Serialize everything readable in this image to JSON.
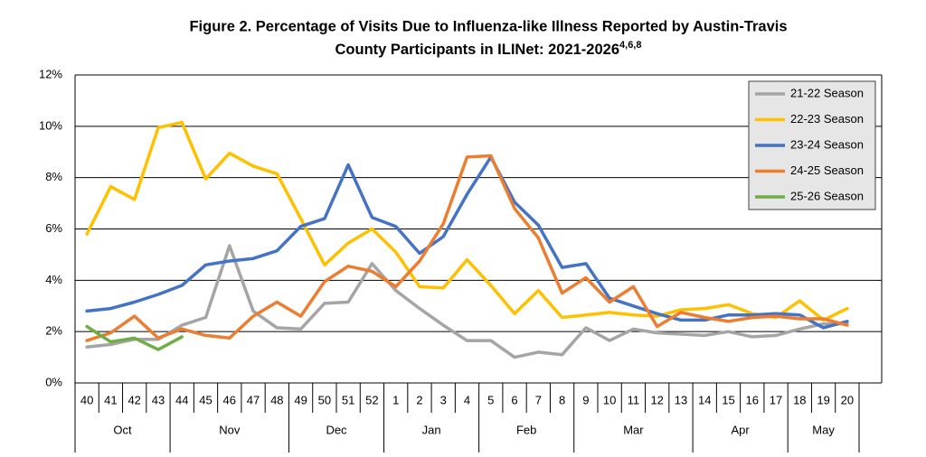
{
  "chart_data": {
    "type": "line",
    "title": "Figure 2. Percentage of Visits Due to Influenza-like Illness Reported by Austin-Travis",
    "title_line2": "County Participants in ILINet: 2021-2026",
    "title_superscript": "4,6,8",
    "categories": [
      "40",
      "41",
      "42",
      "43",
      "44",
      "45",
      "46",
      "47",
      "48",
      "49",
      "50",
      "51",
      "52",
      "1",
      "2",
      "3",
      "4",
      "5",
      "6",
      "7",
      "8",
      "9",
      "10",
      "11",
      "12",
      "13",
      "14",
      "15",
      "16",
      "17",
      "18",
      "19",
      "20"
    ],
    "months": [
      "Oct",
      "Oct",
      "Oct",
      "Oct",
      "Nov",
      "Nov",
      "Nov",
      "Nov",
      "Nov",
      "Dec",
      "Dec",
      "Dec",
      "Dec",
      "Jan",
      "Jan",
      "Jan",
      "Jan",
      "Feb",
      "Feb",
      "Feb",
      "Feb",
      "Mar",
      "Mar",
      "Mar",
      "Mar",
      "Mar",
      "Apr",
      "Apr",
      "Apr",
      "Apr",
      "May",
      "May",
      "May"
    ],
    "ylim": [
      0,
      12
    ],
    "yticks": [
      {
        "value": 0,
        "label": "0%"
      },
      {
        "value": 2,
        "label": "2%"
      },
      {
        "value": 4,
        "label": "4%"
      },
      {
        "value": 6,
        "label": "6%"
      },
      {
        "value": 8,
        "label": "8%"
      },
      {
        "value": 10,
        "label": "10%"
      },
      {
        "value": 12,
        "label": "12%"
      }
    ],
    "grid": true,
    "legend": "upper right",
    "series": [
      {
        "name": "21-22 Season",
        "color": "#a5a5a5",
        "values": [
          1.4,
          1.5,
          1.7,
          1.7,
          2.25,
          2.55,
          5.35,
          2.8,
          2.15,
          2.1,
          3.1,
          3.15,
          4.65,
          3.6,
          2.9,
          2.25,
          1.65,
          1.65,
          1.0,
          1.2,
          1.1,
          2.15,
          1.65,
          2.1,
          1.95,
          1.9,
          1.85,
          2.0,
          1.8,
          1.85,
          2.1,
          2.3,
          2.3
        ]
      },
      {
        "name": "22-23 Season",
        "color": "#ffc000",
        "values": [
          5.8,
          7.65,
          7.15,
          9.95,
          10.15,
          7.95,
          8.95,
          8.45,
          8.15,
          6.4,
          4.6,
          5.45,
          6.0,
          5.1,
          3.75,
          3.7,
          4.8,
          3.8,
          2.7,
          3.6,
          2.55,
          2.65,
          2.75,
          2.65,
          2.6,
          2.85,
          2.9,
          3.05,
          2.7,
          2.55,
          3.2,
          2.45,
          2.9
        ]
      },
      {
        "name": "23-24 Season",
        "color": "#4472c4",
        "values": [
          2.8,
          2.9,
          3.15,
          3.45,
          3.8,
          4.6,
          4.75,
          4.85,
          5.15,
          6.1,
          6.4,
          8.5,
          6.45,
          6.1,
          5.05,
          5.7,
          7.35,
          8.8,
          7.05,
          6.15,
          4.5,
          4.65,
          3.3,
          3.0,
          2.7,
          2.45,
          2.45,
          2.65,
          2.65,
          2.7,
          2.65,
          2.15,
          2.4
        ]
      },
      {
        "name": "24-25 Season",
        "color": "#ed7d31",
        "values": [
          1.65,
          1.95,
          2.6,
          1.75,
          2.1,
          1.85,
          1.75,
          2.6,
          3.15,
          2.6,
          3.95,
          4.55,
          4.35,
          3.75,
          4.75,
          6.2,
          8.8,
          8.85,
          6.8,
          5.65,
          3.5,
          4.1,
          3.15,
          3.75,
          2.2,
          2.75,
          2.55,
          2.4,
          2.55,
          2.6,
          2.5,
          2.5,
          2.25
        ]
      },
      {
        "name": "25-26 Season",
        "color": "#70ad47",
        "values": [
          2.2,
          1.6,
          1.75,
          1.3,
          1.8,
          null,
          null,
          null,
          null,
          null,
          null,
          null,
          null,
          null,
          null,
          null,
          null,
          null,
          null,
          null,
          null,
          null,
          null,
          null,
          null,
          null,
          null,
          null,
          null,
          null,
          null,
          null,
          null
        ]
      }
    ]
  }
}
